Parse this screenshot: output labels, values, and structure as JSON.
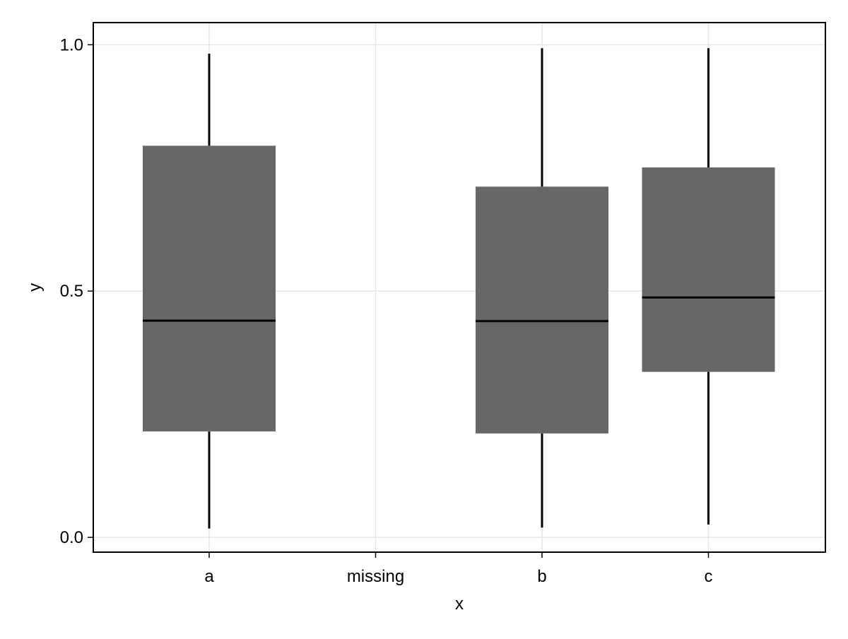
{
  "chart_data": {
    "type": "boxplot",
    "title": "",
    "xlabel": "x",
    "ylabel": "y",
    "ylim": [
      -0.03,
      1.045
    ],
    "grid": true,
    "legend": "none",
    "categories": [
      "a",
      "missing",
      "b",
      "c"
    ],
    "y_ticks": [
      {
        "value": 0.0,
        "label": "0.0"
      },
      {
        "value": 0.5,
        "label": "0.5"
      },
      {
        "value": 1.0,
        "label": "1.0"
      }
    ],
    "boxes": [
      {
        "category": "a",
        "whisker_low": 0.018,
        "q1": 0.215,
        "median": 0.44,
        "q3": 0.795,
        "whisker_high": 0.982
      },
      {
        "category": "missing",
        "whisker_low": null,
        "q1": null,
        "median": null,
        "q3": null,
        "whisker_high": null
      },
      {
        "category": "b",
        "whisker_low": 0.02,
        "q1": 0.211,
        "median": 0.439,
        "q3": 0.712,
        "whisker_high": 0.993
      },
      {
        "category": "c",
        "whisker_low": 0.026,
        "q1": 0.336,
        "median": 0.487,
        "q3": 0.751,
        "whisker_high": 0.993
      }
    ],
    "colors": {
      "box_fill": "#676767",
      "median_line": "#000000",
      "whisker": "#000000",
      "grid": "#e6e6e6",
      "frame": "#000000"
    }
  }
}
